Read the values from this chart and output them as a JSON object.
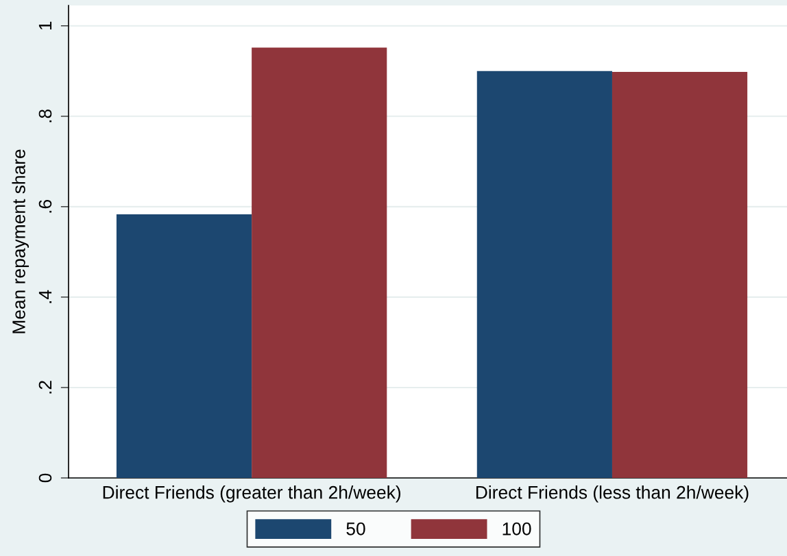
{
  "chart_data": {
    "type": "bar",
    "ylabel": "Mean repayment share",
    "categories": [
      "Direct Friends (greater than 2h/week)",
      "Direct Friends (less than 2h/week)"
    ],
    "series": [
      {
        "name": "50",
        "color": "#1c4770",
        "values": [
          0.583,
          0.9
        ]
      },
      {
        "name": "100",
        "color": "#90353b",
        "values": [
          0.952,
          0.898
        ]
      }
    ],
    "ylim": [
      0,
      1.045
    ],
    "yticks": [
      0,
      {
        "value": 0.2,
        "label": ".2"
      },
      {
        "value": 0.4,
        "label": ".4"
      },
      {
        "value": 0.6,
        "label": ".6"
      },
      {
        "value": 0.8,
        "label": ".8"
      },
      1
    ],
    "grid": "y",
    "legend": "bottom"
  }
}
